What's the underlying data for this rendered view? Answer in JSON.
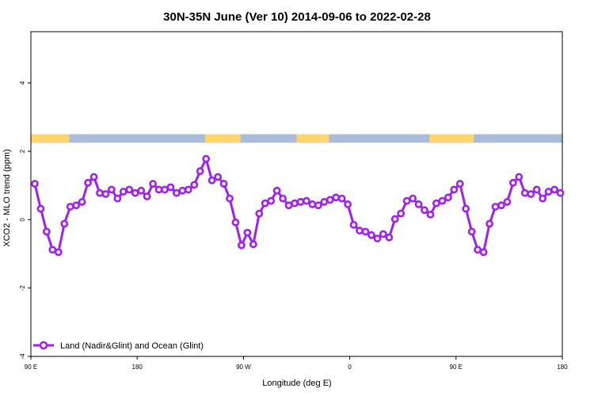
{
  "chart_data": {
    "type": "line",
    "title": "30N-35N June (Ver 10)   2014-09-06 to 2022-02-28",
    "xlabel": "Longitude (deg E)",
    "ylabel": "XCO2 - MLO trend (ppm)",
    "xlim": [
      -90,
      180
    ],
    "ylim": [
      -4.0,
      5.5
    ],
    "x_axis_unit": "deg E (continuous, wraps at dateline)",
    "xtick_values": [
      -90,
      -36,
      18,
      72,
      126,
      180
    ],
    "xtick_labels": [
      "90 E",
      "180",
      "90 W",
      "0",
      "90 E",
      "180"
    ],
    "ytick_values": [
      -4,
      -2,
      0,
      2,
      4
    ],
    "ytick_labels": [
      "-4",
      "-2",
      "0",
      "2",
      "4"
    ],
    "grid": false,
    "legend_position": "bottom-left",
    "colors": {
      "series": "#a020f0",
      "land_band": "#ffd66e",
      "ocean_band": "#a9bcdc"
    },
    "land_ocean_band": {
      "y_range": [
        2.25,
        2.5
      ],
      "land_intervals": [
        [
          -90,
          -70.5
        ],
        [
          -1.5,
          16.5
        ],
        [
          45,
          61.5
        ],
        [
          112.5,
          135
        ]
      ]
    },
    "series": [
      {
        "name": "Land (Nadir&Glint) and Ocean (Glint)",
        "x": [
          -88,
          -85,
          -82,
          -79,
          -76,
          -73,
          -70,
          -67,
          -64,
          -61,
          -58,
          -55,
          -52,
          -49,
          -46,
          -43,
          -40,
          -37,
          -34,
          -31,
          -28,
          -25,
          -22,
          -19,
          -16,
          -13,
          -10,
          -7,
          -4,
          -1,
          2,
          5,
          8,
          11,
          14,
          17,
          20,
          23,
          26,
          29,
          32,
          35,
          38,
          41,
          44,
          47,
          50,
          53,
          56,
          59,
          62,
          65,
          68,
          71,
          74,
          77,
          80,
          83,
          86,
          89,
          92,
          95,
          98,
          101,
          104,
          107,
          110,
          113,
          116,
          119,
          122,
          125,
          128,
          131,
          134,
          137,
          140,
          143,
          146,
          149,
          152,
          155,
          158,
          161,
          164,
          167,
          170,
          173,
          176,
          179
        ],
        "y": [
          1.05,
          0.32,
          -0.35,
          -0.88,
          -0.95,
          -0.12,
          0.38,
          0.42,
          0.52,
          1.08,
          1.25,
          0.78,
          0.75,
          0.88,
          0.62,
          0.82,
          0.88,
          0.78,
          0.85,
          0.68,
          1.05,
          0.88,
          0.88,
          0.95,
          0.78,
          0.85,
          0.88,
          1.02,
          1.42,
          1.78,
          1.15,
          1.25,
          1.05,
          0.62,
          -0.08,
          -0.75,
          -0.38,
          -0.72,
          0.18,
          0.48,
          0.55,
          0.85,
          0.62,
          0.42,
          0.48,
          0.52,
          0.55,
          0.45,
          0.42,
          0.52,
          0.58,
          0.65,
          0.62,
          0.45,
          -0.15,
          -0.32,
          -0.35,
          -0.45,
          -0.55,
          -0.42,
          -0.52,
          0.02,
          0.18,
          0.55,
          0.62,
          0.45,
          0.28,
          0.15,
          0.48,
          0.55,
          0.65,
          0.88,
          1.05,
          0.32,
          -0.35,
          -0.88,
          -0.95,
          -0.12,
          0.38,
          0.42,
          0.52,
          1.08,
          1.25,
          0.78,
          0.75,
          0.88,
          0.62,
          0.82,
          0.88,
          0.78
        ]
      }
    ]
  }
}
